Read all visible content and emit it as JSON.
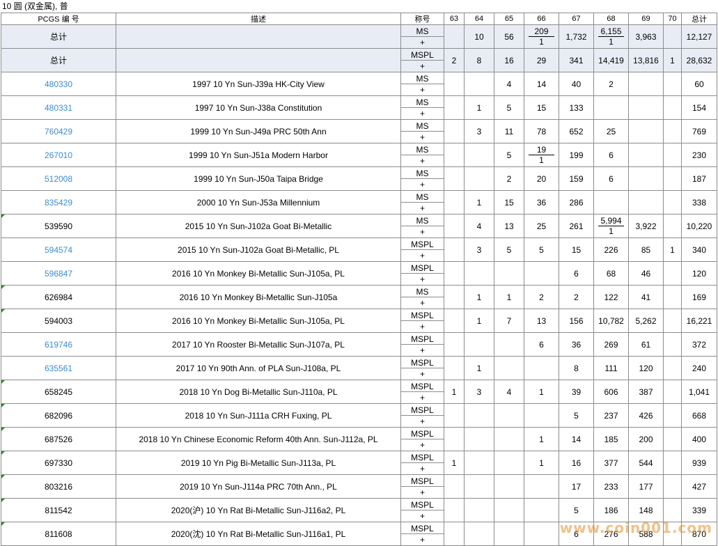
{
  "title": "10 圆 (双金属), 普",
  "headers": {
    "pcgs": "PCGS  编  号",
    "desc": "描述",
    "designation": "称号",
    "grades": [
      "63",
      "64",
      "65",
      "66",
      "67",
      "68",
      "69",
      "70"
    ],
    "total": "总计"
  },
  "totals": [
    {
      "label": "总计",
      "des_top": "MS",
      "des_bot": "+",
      "cells": [
        "",
        "10",
        "56",
        {
          "a": "209",
          "b": "1"
        },
        "1,732",
        {
          "a": "6,155",
          "b": "1"
        },
        "3,963",
        ""
      ],
      "total": "12,127"
    },
    {
      "label": "总计",
      "des_top": "MSPL",
      "des_bot": "+",
      "cells": [
        "2",
        "8",
        "16",
        "29",
        "341",
        "14,419",
        "13,816",
        "1"
      ],
      "total": "28,632"
    }
  ],
  "rows": [
    {
      "id": "480330",
      "link": true,
      "desc": "1997 10 Yn Sun-J39a HK-City View",
      "des_top": "MS",
      "des_bot": "+",
      "cells": [
        "",
        "",
        "4",
        "14",
        "40",
        "2",
        "",
        ""
      ],
      "total": "60"
    },
    {
      "id": "480331",
      "link": true,
      "desc": "1997 10 Yn Sun-J38a Constitution",
      "des_top": "MS",
      "des_bot": "+",
      "cells": [
        "",
        "1",
        "5",
        "15",
        "133",
        "",
        "",
        ""
      ],
      "total": "154"
    },
    {
      "id": "760429",
      "link": true,
      "desc": "1999 10 Yn Sun-J49a PRC 50th Ann",
      "des_top": "MS",
      "des_bot": "+",
      "cells": [
        "",
        "3",
        "11",
        "78",
        "652",
        "25",
        "",
        ""
      ],
      "total": "769"
    },
    {
      "id": "267010",
      "link": true,
      "desc": "1999 10 Yn Sun-J51a Modern Harbor",
      "des_top": "MS",
      "des_bot": "+",
      "cells": [
        "",
        "",
        "5",
        {
          "a": "19",
          "b": "1"
        },
        "199",
        "6",
        "",
        ""
      ],
      "total": "230"
    },
    {
      "id": "512008",
      "link": true,
      "desc": "1999 10 Yn Sun-J50a Taipa Bridge",
      "des_top": "MS",
      "des_bot": "+",
      "cells": [
        "",
        "",
        "2",
        "20",
        "159",
        "6",
        "",
        ""
      ],
      "total": "187"
    },
    {
      "id": "835429",
      "link": true,
      "desc": "2000 10 Yn Sun-J53a Millennium",
      "des_top": "MS",
      "des_bot": "+",
      "cells": [
        "",
        "1",
        "15",
        "36",
        "286",
        "",
        "",
        ""
      ],
      "total": "338"
    },
    {
      "id": "539590",
      "link": false,
      "desc": "2015 10 Yn Sun-J102a Goat Bi-Metallic",
      "des_top": "MS",
      "des_bot": "+",
      "cells": [
        "",
        "4",
        "13",
        "25",
        "261",
        {
          "a": "5,994",
          "b": "1"
        },
        "3,922",
        ""
      ],
      "total": "10,220"
    },
    {
      "id": "594574",
      "link": true,
      "desc": "2015 10 Yn Sun-J102a Goat Bi-Metallic, PL",
      "des_top": "MSPL",
      "des_bot": "+",
      "cells": [
        "",
        "3",
        "5",
        "5",
        "15",
        "226",
        "85",
        "1"
      ],
      "total": "340"
    },
    {
      "id": "596847",
      "link": true,
      "desc": "2016 10 Yn Monkey Bi-Metallic Sun-J105a, PL",
      "des_top": "MSPL",
      "des_bot": "+",
      "cells": [
        "",
        "",
        "",
        "",
        "6",
        "68",
        "46",
        ""
      ],
      "total": "120"
    },
    {
      "id": "626984",
      "link": false,
      "desc": "2016 10 Yn Monkey Bi-Metallic Sun-J105a",
      "des_top": "MS",
      "des_bot": "+",
      "cells": [
        "",
        "1",
        "1",
        "2",
        "2",
        "122",
        "41",
        ""
      ],
      "total": "169"
    },
    {
      "id": "594003",
      "link": false,
      "desc": "2016 10 Yn Monkey Bi-Metallic Sun-J105a, PL",
      "des_top": "MSPL",
      "des_bot": "+",
      "cells": [
        "",
        "1",
        "7",
        "13",
        "156",
        "10,782",
        "5,262",
        ""
      ],
      "total": "16,221"
    },
    {
      "id": "619746",
      "link": true,
      "desc": "2017 10 Yn Rooster Bi-Metallic Sun-J107a, PL",
      "des_top": "MSPL",
      "des_bot": "+",
      "cells": [
        "",
        "",
        "",
        "6",
        "36",
        "269",
        "61",
        ""
      ],
      "total": "372"
    },
    {
      "id": "635561",
      "link": true,
      "desc": "2017 10 Yn 90th Ann. of PLA Sun-J108a, PL",
      "des_top": "MSPL",
      "des_bot": "+",
      "cells": [
        "",
        "1",
        "",
        "",
        "8",
        "111",
        "120",
        ""
      ],
      "total": "240"
    },
    {
      "id": "658245",
      "link": false,
      "desc": "2018 10 Yn Dog Bi-Metallic Sun-J110a, PL",
      "des_top": "MSPL",
      "des_bot": "+",
      "cells": [
        "1",
        "3",
        "4",
        "1",
        "39",
        "606",
        "387",
        ""
      ],
      "total": "1,041"
    },
    {
      "id": "682096",
      "link": false,
      "desc": "2018 10 Yn Sun-J111a CRH Fuxing, PL",
      "des_top": "MSPL",
      "des_bot": "+",
      "cells": [
        "",
        "",
        "",
        "",
        "5",
        "237",
        "426",
        ""
      ],
      "total": "668"
    },
    {
      "id": "687526",
      "link": false,
      "desc": "2018 10 Yn Chinese Economic Reform 40th Ann. Sun-J112a, PL",
      "des_top": "MSPL",
      "des_bot": "+",
      "cells": [
        "",
        "",
        "",
        "1",
        "14",
        "185",
        "200",
        ""
      ],
      "total": "400"
    },
    {
      "id": "697330",
      "link": false,
      "desc": "2019 10 Yn Pig Bi-Metallic Sun-J113a, PL",
      "des_top": "MSPL",
      "des_bot": "+",
      "cells": [
        "1",
        "",
        "",
        "1",
        "16",
        "377",
        "544",
        ""
      ],
      "total": "939"
    },
    {
      "id": "803216",
      "link": false,
      "desc": "2019 10 Yn Sun-J114a PRC 70th Ann., PL",
      "des_top": "MSPL",
      "des_bot": "+",
      "cells": [
        "",
        "",
        "",
        "",
        "17",
        "233",
        "177",
        ""
      ],
      "total": "427"
    },
    {
      "id": "811542",
      "link": false,
      "desc": "2020(沪) 10 Yn Rat Bi-Metallic Sun-J116a2, PL",
      "des_top": "MSPL",
      "des_bot": "+",
      "cells": [
        "",
        "",
        "",
        "",
        "5",
        "186",
        "148",
        ""
      ],
      "total": "339"
    },
    {
      "id": "811608",
      "link": false,
      "desc": "2020(沈) 10 Yn Rat Bi-Metallic Sun-J116a1, PL",
      "des_top": "MSPL",
      "des_bot": "+",
      "cells": [
        "",
        "",
        "",
        "",
        "6",
        "276",
        "588",
        ""
      ],
      "total": "870"
    }
  ],
  "watermark": "www.coin001.com",
  "colors": {
    "link": "#3a8bd0",
    "total_bg": "#e8edf5",
    "grid": "#8c8c8c"
  }
}
